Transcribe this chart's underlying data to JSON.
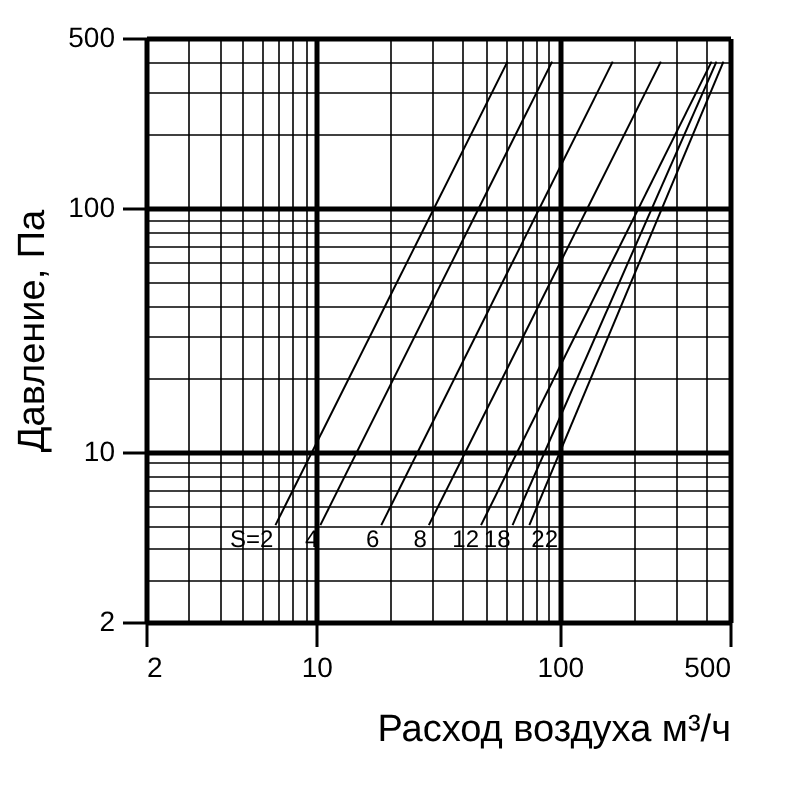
{
  "chart_data": {
    "type": "line",
    "xlabel": "Расход воздуха м³/ч",
    "ylabel": "Давление, Па",
    "log": "xy",
    "grid": true,
    "legend": false,
    "line_style": "solid",
    "marker": "none",
    "xlim": [
      2,
      500
    ],
    "ylim": [
      2,
      500
    ],
    "xticks": [
      2,
      10,
      100,
      500
    ],
    "yticks": [
      2,
      10,
      100,
      500
    ],
    "series": [
      {
        "name": "S=2",
        "color": "#000000",
        "x": [
          6.8,
          61
        ],
        "values": [
          5,
          400
        ]
      },
      {
        "name": "4",
        "color": "#000000",
        "x": [
          10.4,
          93
        ],
        "values": [
          5,
          400
        ]
      },
      {
        "name": "6",
        "color": "#000000",
        "x": [
          18.5,
          165
        ],
        "values": [
          5,
          400
        ]
      },
      {
        "name": "8",
        "color": "#000000",
        "x": [
          29,
          260
        ],
        "values": [
          5,
          400
        ]
      },
      {
        "name": "12",
        "color": "#000000",
        "x": [
          47.5,
          420
        ],
        "values": [
          5,
          400
        ]
      },
      {
        "name": "18",
        "color": "#000000",
        "x": [
          64,
          440
        ],
        "values": [
          5,
          400
        ]
      },
      {
        "name": "22",
        "color": "#000000",
        "x": [
          75,
          470
        ],
        "values": [
          5,
          400
        ]
      }
    ]
  }
}
